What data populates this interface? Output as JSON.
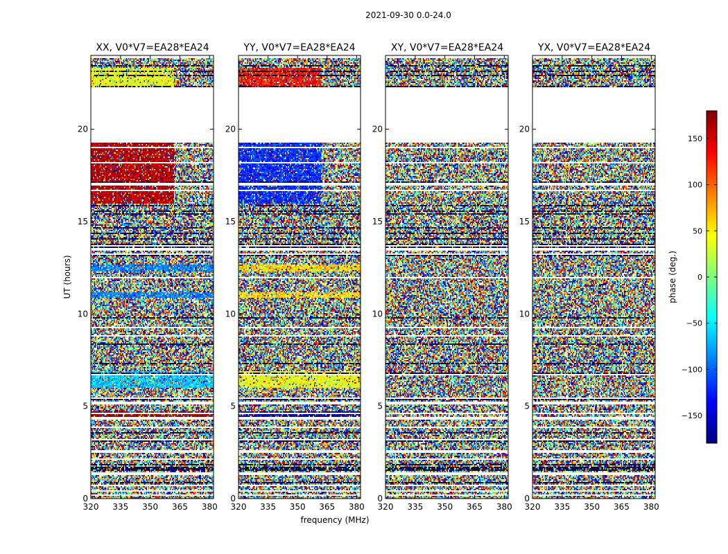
{
  "figure": {
    "suptitle": "2021-09-30 0.0-24.0",
    "shared_xlabel": "frequency (MHz)",
    "shared_ylabel": "UT (hours)"
  },
  "colorbar": {
    "label": "phase (deg.)",
    "range": [
      -180,
      180
    ],
    "ticks": [
      150,
      100,
      50,
      0,
      -50,
      -100,
      -150
    ],
    "tick_labels": [
      "150",
      "100",
      "50",
      "0",
      "−50",
      "−100",
      "−150"
    ],
    "colormap": [
      "#00007f",
      "#0000ff",
      "#007fff",
      "#00ffff",
      "#7fff7f",
      "#ffff00",
      "#ff7f00",
      "#ff0000",
      "#7f0000"
    ]
  },
  "chart_data": [
    {
      "type": "heatmap",
      "title": "XX, V0*V7=EA28*EA24",
      "xlabel": "",
      "ylabel": "UT (hours)",
      "xlim": [
        320,
        382
      ],
      "ylim": [
        0,
        24
      ],
      "xticks": [
        320,
        335,
        350,
        365,
        380
      ],
      "yticks": [
        0,
        5,
        10,
        15,
        20
      ],
      "z_label": "phase (deg.)",
      "blank_time_ranges_hours": [
        [
          19.3,
          22.3
        ]
      ],
      "coherent_bands": [
        {
          "t0": 16.0,
          "t1": 19.3,
          "f0": 320,
          "f1": 362,
          "phase_deg": 160
        },
        {
          "t0": 12.3,
          "t1": 12.7,
          "f0": 320,
          "f1": 382,
          "phase_deg": -90
        },
        {
          "t0": 10.9,
          "t1": 11.2,
          "f0": 320,
          "f1": 382,
          "phase_deg": -90
        },
        {
          "t0": 6.0,
          "t1": 6.9,
          "f0": 320,
          "f1": 382,
          "phase_deg": -65
        },
        {
          "t0": 4.4,
          "t1": 4.7,
          "f0": 320,
          "f1": 382,
          "phase_deg": 170
        },
        {
          "t0": 22.3,
          "t1": 23.3,
          "f0": 320,
          "f1": 362,
          "phase_deg": 40
        }
      ]
    },
    {
      "type": "heatmap",
      "title": "YY, V0*V7=EA28*EA24",
      "xlabel": "frequency (MHz)",
      "ylabel": "",
      "xlim": [
        320,
        382
      ],
      "ylim": [
        0,
        24
      ],
      "xticks": [
        320,
        335,
        350,
        365,
        380
      ],
      "yticks": [
        0,
        5,
        10,
        15,
        20
      ],
      "z_label": "phase (deg.)",
      "blank_time_ranges_hours": [
        [
          19.3,
          22.3
        ]
      ],
      "coherent_bands": [
        {
          "t0": 16.0,
          "t1": 19.3,
          "f0": 320,
          "f1": 362,
          "phase_deg": -120
        },
        {
          "t0": 12.3,
          "t1": 12.7,
          "f0": 320,
          "f1": 382,
          "phase_deg": 60
        },
        {
          "t0": 10.9,
          "t1": 11.2,
          "f0": 320,
          "f1": 382,
          "phase_deg": 55
        },
        {
          "t0": 6.0,
          "t1": 6.9,
          "f0": 320,
          "f1": 382,
          "phase_deg": 40
        },
        {
          "t0": 4.4,
          "t1": 4.7,
          "f0": 320,
          "f1": 382,
          "phase_deg": -170
        },
        {
          "t0": 22.3,
          "t1": 23.3,
          "f0": 320,
          "f1": 362,
          "phase_deg": 130
        }
      ]
    },
    {
      "type": "heatmap",
      "title": "XY, V0*V7=EA28*EA24",
      "xlabel": "",
      "ylabel": "",
      "xlim": [
        320,
        382
      ],
      "ylim": [
        0,
        24
      ],
      "xticks": [
        320,
        335,
        350,
        365,
        380
      ],
      "yticks": [
        0,
        5,
        10,
        15,
        20
      ],
      "z_label": "phase (deg.)",
      "blank_time_ranges_hours": [
        [
          19.3,
          22.3
        ]
      ],
      "coherent_bands": []
    },
    {
      "type": "heatmap",
      "title": "YX, V0*V7=EA28*EA24",
      "xlabel": "",
      "ylabel": "",
      "xlim": [
        320,
        382
      ],
      "ylim": [
        0,
        24
      ],
      "xticks": [
        320,
        335,
        350,
        365,
        380
      ],
      "yticks": [
        0,
        5,
        10,
        15,
        20
      ],
      "z_label": "phase (deg.)",
      "blank_time_ranges_hours": [
        [
          19.3,
          22.3
        ]
      ],
      "coherent_bands": []
    }
  ]
}
